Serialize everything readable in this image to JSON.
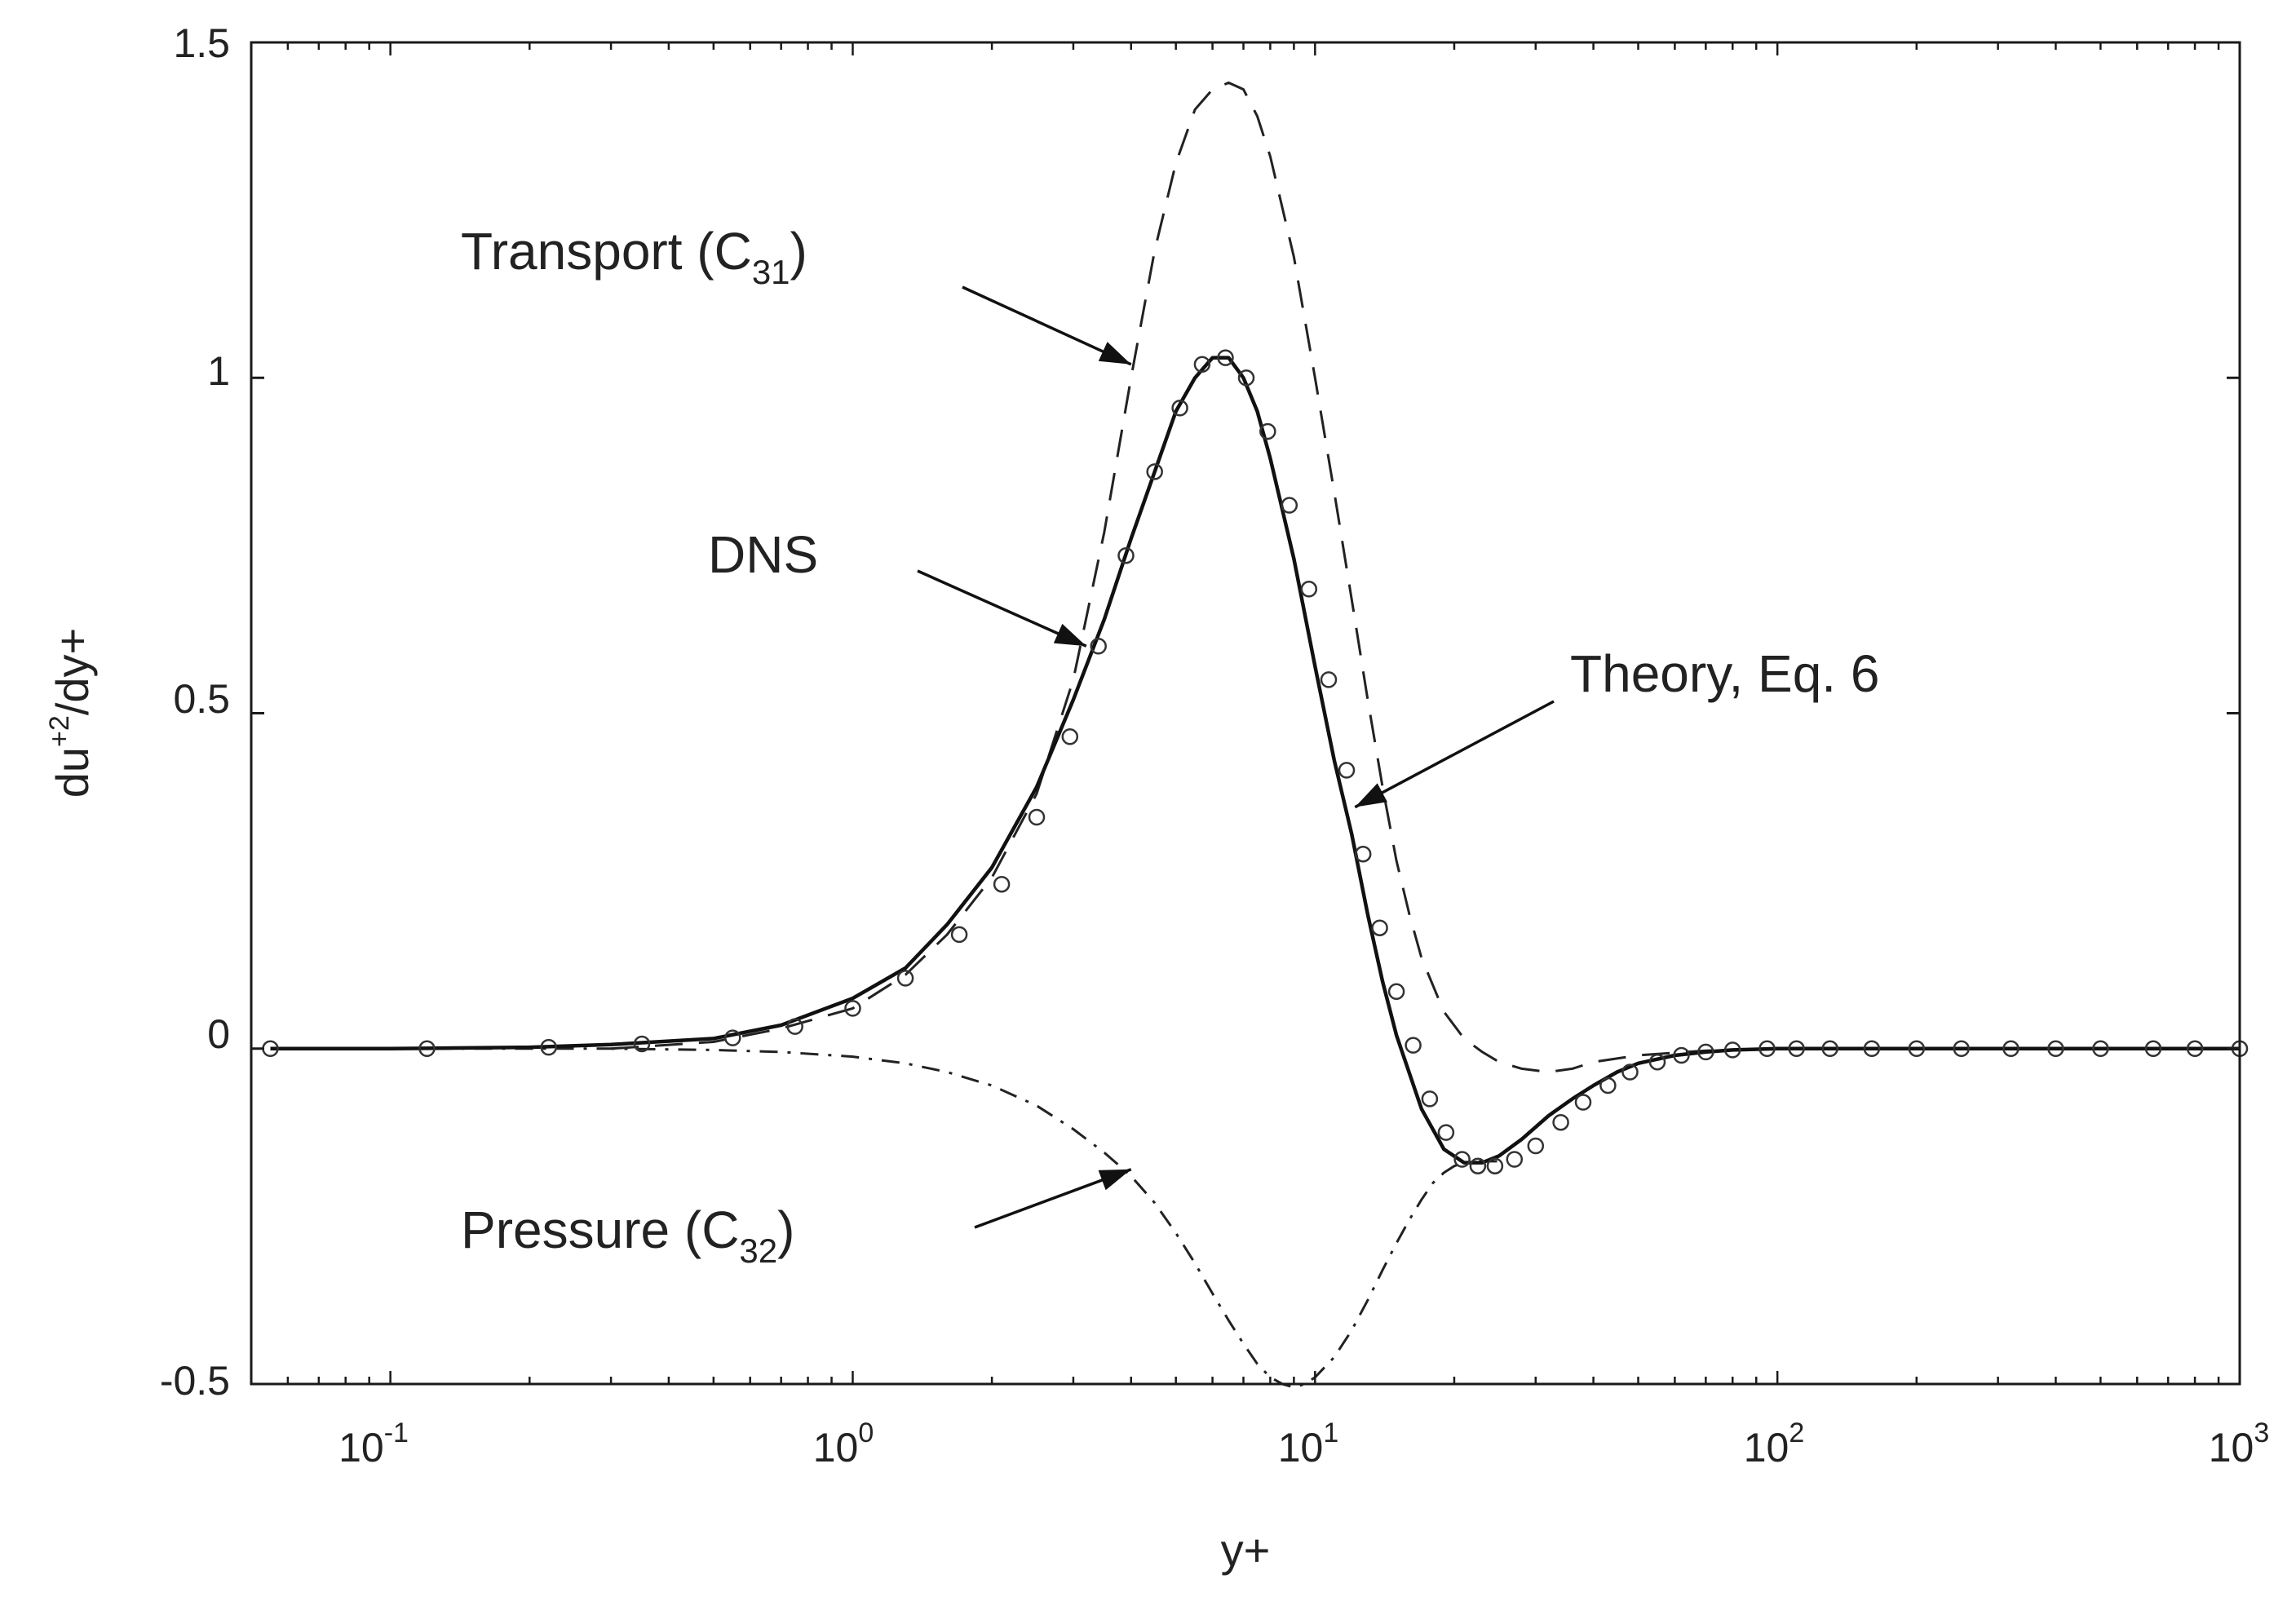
{
  "chart_data": {
    "type": "line",
    "title": "",
    "xlabel": "y+",
    "ylabel": {
      "base": "du",
      "sup": "+2",
      "rest": "/dy+"
    },
    "xscale": "log",
    "xlim": [
      0.05,
      1000
    ],
    "ylim": [
      -0.5,
      1.5
    ],
    "xticks": [
      {
        "value": 0.1,
        "base": "10",
        "exp": "-1"
      },
      {
        "value": 1,
        "base": "10",
        "exp": "0"
      },
      {
        "value": 10,
        "base": "10",
        "exp": "1"
      },
      {
        "value": 100,
        "base": "10",
        "exp": "2"
      },
      {
        "value": 1000,
        "base": "10",
        "exp": "3"
      }
    ],
    "yticks": [
      {
        "value": -0.5,
        "label": "-0.5"
      },
      {
        "value": 0,
        "label": "0"
      },
      {
        "value": 0.5,
        "label": "0.5"
      },
      {
        "value": 1,
        "label": "1"
      },
      {
        "value": 1.5,
        "label": "1.5"
      }
    ],
    "grid": false,
    "legend": "none",
    "series": [
      {
        "name": "Theory, Eq. 6",
        "style": "solid",
        "x": [
          0.055,
          0.1,
          0.2,
          0.3,
          0.5,
          0.7,
          1.0,
          1.3,
          1.6,
          2.0,
          2.5,
          3.0,
          3.5,
          4.0,
          4.5,
          5.0,
          5.5,
          6.0,
          6.5,
          7.0,
          7.5,
          8.0,
          9.0,
          10,
          11,
          12,
          13,
          14,
          15,
          17,
          19,
          21,
          23,
          25,
          28,
          32,
          36,
          40,
          45,
          50,
          60,
          70,
          80,
          100,
          150,
          200,
          300,
          500,
          1000
        ],
        "y": [
          0.0,
          0.0,
          0.002,
          0.006,
          0.015,
          0.035,
          0.075,
          0.12,
          0.185,
          0.27,
          0.39,
          0.52,
          0.64,
          0.76,
          0.86,
          0.95,
          1.0,
          1.03,
          1.03,
          1.0,
          0.95,
          0.88,
          0.73,
          0.57,
          0.43,
          0.32,
          0.2,
          0.1,
          0.02,
          -0.09,
          -0.15,
          -0.17,
          -0.17,
          -0.16,
          -0.135,
          -0.1,
          -0.075,
          -0.055,
          -0.035,
          -0.022,
          -0.01,
          -0.005,
          -0.002,
          0.0,
          0.0,
          0.0,
          0.0,
          0.0,
          0.0
        ]
      },
      {
        "name": "DNS",
        "style": "circles",
        "x": [
          0.055,
          0.12,
          0.22,
          0.35,
          0.55,
          0.75,
          1.0,
          1.3,
          1.7,
          2.1,
          2.5,
          2.95,
          3.4,
          3.9,
          4.5,
          5.1,
          5.7,
          6.4,
          7.1,
          7.9,
          8.8,
          9.7,
          10.7,
          11.7,
          12.7,
          13.8,
          15.0,
          16.3,
          17.7,
          19.2,
          20.8,
          22.5,
          24.5,
          27,
          30,
          34,
          38,
          43,
          48,
          55,
          62,
          70,
          80,
          95,
          110,
          130,
          160,
          200,
          250,
          320,
          400,
          500,
          650,
          800,
          1000
        ],
        "y": [
          0.0,
          0.0,
          0.002,
          0.007,
          0.016,
          0.033,
          0.06,
          0.105,
          0.17,
          0.245,
          0.345,
          0.465,
          0.6,
          0.735,
          0.86,
          0.955,
          1.02,
          1.03,
          1.0,
          0.92,
          0.81,
          0.685,
          0.55,
          0.415,
          0.29,
          0.18,
          0.085,
          0.005,
          -0.075,
          -0.125,
          -0.165,
          -0.175,
          -0.175,
          -0.165,
          -0.145,
          -0.11,
          -0.08,
          -0.055,
          -0.035,
          -0.02,
          -0.01,
          -0.005,
          -0.002,
          0.0,
          0.0,
          0.0,
          0.0,
          0.0,
          0.0,
          0.0,
          0.0,
          0.0,
          0.0,
          0.0,
          0.0
        ]
      },
      {
        "name": "Transport (C31)",
        "style": "dashed",
        "x": [
          0.3,
          0.5,
          0.7,
          1.0,
          1.3,
          1.6,
          2.0,
          2.5,
          3.0,
          3.5,
          4.0,
          4.5,
          5.0,
          5.5,
          6.0,
          6.5,
          7.0,
          7.5,
          8.0,
          9.0,
          10,
          11,
          12,
          13,
          14,
          15,
          16,
          17,
          19,
          21,
          23,
          25,
          28,
          32,
          36,
          40,
          50,
          70,
          100,
          200,
          500,
          1000
        ],
        "y": [
          0.0,
          0.01,
          0.03,
          0.06,
          0.11,
          0.17,
          0.255,
          0.38,
          0.55,
          0.77,
          1.0,
          1.19,
          1.32,
          1.4,
          1.43,
          1.44,
          1.43,
          1.39,
          1.33,
          1.18,
          1.0,
          0.83,
          0.67,
          0.52,
          0.39,
          0.28,
          0.2,
          0.135,
          0.055,
          0.015,
          -0.005,
          -0.02,
          -0.03,
          -0.035,
          -0.03,
          -0.02,
          -0.01,
          -0.003,
          0.0,
          0.0,
          0.0,
          0.0
        ]
      },
      {
        "name": "Pressure (C32)",
        "style": "dashdot",
        "x": [
          0.055,
          0.3,
          0.5,
          0.7,
          1.0,
          1.3,
          1.6,
          2.0,
          2.5,
          3.0,
          3.5,
          4.0,
          4.5,
          5.0,
          5.5,
          6.0,
          6.5,
          7.0,
          7.5,
          8.0,
          8.5,
          9.0,
          9.5,
          10,
          11,
          12,
          13,
          14,
          15,
          16,
          17,
          18,
          19,
          20,
          21,
          22,
          23,
          25
        ],
        "y": [
          0.0,
          0.0,
          -0.002,
          -0.005,
          -0.012,
          -0.022,
          -0.035,
          -0.055,
          -0.085,
          -0.12,
          -0.155,
          -0.19,
          -0.23,
          -0.275,
          -0.32,
          -0.365,
          -0.405,
          -0.44,
          -0.47,
          -0.49,
          -0.5,
          -0.505,
          -0.5,
          -0.49,
          -0.46,
          -0.42,
          -0.375,
          -0.33,
          -0.29,
          -0.255,
          -0.225,
          -0.2,
          -0.185,
          -0.175,
          -0.17,
          -0.168,
          -0.168,
          -0.168
        ]
      }
    ],
    "annotations": [
      {
        "id": "transport",
        "text": "Transport (C",
        "sub": "31",
        "close": ")",
        "points_to": {
          "x": 4.0,
          "y": 1.02
        }
      },
      {
        "id": "dns",
        "text": "DNS",
        "points_to": {
          "x": 3.2,
          "y": 0.6
        }
      },
      {
        "id": "theory",
        "text": "Theory, Eq. 6",
        "points_to": {
          "x": 12.2,
          "y": 0.36
        }
      },
      {
        "id": "pressure",
        "text": "Pressure (C",
        "sub": "32",
        "close": ")",
        "points_to": {
          "x": 4.0,
          "y": -0.18
        }
      }
    ]
  }
}
